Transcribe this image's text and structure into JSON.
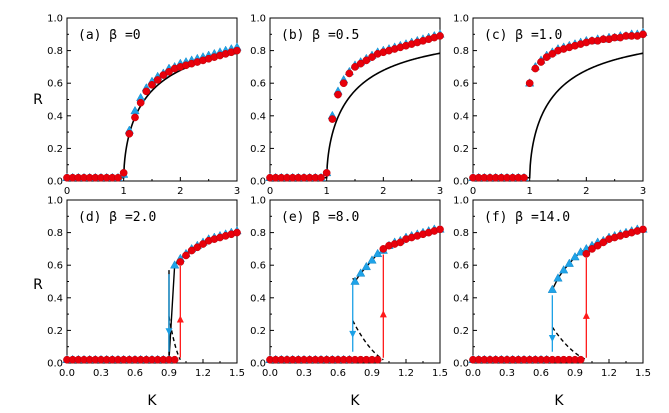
{
  "figure": {
    "ylabel_top": "R",
    "ylabel_bottom": "R",
    "xlabel": "K"
  },
  "colors": {
    "red": "#e8000b",
    "blue": "#1fa3e8",
    "theory": "#000000",
    "arrow_red": "#ff1a1a",
    "arrow_blue": "#1aa0e6"
  },
  "chart_data": [
    {
      "type": "scatter",
      "title": "(a) β =0",
      "xlim": [
        0,
        3
      ],
      "ylim": [
        0,
        1
      ],
      "xticks": [
        0,
        1,
        2,
        3
      ],
      "xticklabels": [
        "0",
        "1",
        "2",
        "3"
      ],
      "yticks": [
        0,
        0.2,
        0.4,
        0.6,
        0.8,
        1.0
      ],
      "yticklabels": [
        "0.0",
        "0.2",
        "0.4",
        "0.6",
        "0.8",
        "1.0"
      ],
      "red_points": {
        "x": [
          0.0,
          0.1,
          0.2,
          0.3,
          0.4,
          0.5,
          0.6,
          0.7,
          0.8,
          0.9,
          1.0,
          1.1,
          1.2,
          1.3,
          1.4,
          1.5,
          1.6,
          1.7,
          1.8,
          1.9,
          2.0,
          2.1,
          2.2,
          2.3,
          2.4,
          2.5,
          2.6,
          2.7,
          2.8,
          2.9,
          3.0
        ],
        "y": [
          0.02,
          0.02,
          0.02,
          0.02,
          0.02,
          0.02,
          0.02,
          0.02,
          0.02,
          0.02,
          0.05,
          0.29,
          0.39,
          0.48,
          0.55,
          0.59,
          0.62,
          0.65,
          0.67,
          0.69,
          0.7,
          0.71,
          0.72,
          0.73,
          0.74,
          0.75,
          0.76,
          0.77,
          0.78,
          0.79,
          0.8
        ]
      },
      "blue_points": {
        "x": [
          0.0,
          0.1,
          0.2,
          0.3,
          0.4,
          0.5,
          0.6,
          0.7,
          0.8,
          0.9,
          1.0,
          1.1,
          1.2,
          1.3,
          1.4,
          1.5,
          1.6,
          1.7,
          1.8,
          1.9,
          2.0,
          2.1,
          2.2,
          2.3,
          2.4,
          2.5,
          2.6,
          2.7,
          2.8,
          2.9,
          3.0
        ],
        "y": [
          0.02,
          0.02,
          0.02,
          0.02,
          0.02,
          0.02,
          0.02,
          0.02,
          0.02,
          0.02,
          0.04,
          0.31,
          0.43,
          0.51,
          0.57,
          0.61,
          0.64,
          0.66,
          0.69,
          0.7,
          0.72,
          0.73,
          0.74,
          0.75,
          0.76,
          0.77,
          0.78,
          0.79,
          0.8,
          0.81,
          0.82
        ]
      },
      "theory": {
        "Kc": 1.0
      }
    },
    {
      "type": "scatter",
      "title": "(b) β =0.5",
      "xlim": [
        0,
        3
      ],
      "ylim": [
        0,
        1
      ],
      "xticks": [
        0,
        1,
        2,
        3
      ],
      "xticklabels": [
        "0",
        "1",
        "2",
        "3"
      ],
      "yticks": [
        0,
        0.2,
        0.4,
        0.6,
        0.8,
        1.0
      ],
      "yticklabels": [
        "0.0",
        "0.2",
        "0.4",
        "0.6",
        "0.8",
        "1.0"
      ],
      "red_points": {
        "x": [
          0.0,
          0.1,
          0.2,
          0.3,
          0.4,
          0.5,
          0.6,
          0.7,
          0.8,
          0.9,
          1.0,
          1.1,
          1.2,
          1.3,
          1.4,
          1.5,
          1.6,
          1.7,
          1.8,
          1.9,
          2.0,
          2.1,
          2.2,
          2.3,
          2.4,
          2.5,
          2.6,
          2.7,
          2.8,
          2.9,
          3.0
        ],
        "y": [
          0.02,
          0.02,
          0.02,
          0.02,
          0.02,
          0.02,
          0.02,
          0.02,
          0.02,
          0.02,
          0.05,
          0.38,
          0.53,
          0.6,
          0.66,
          0.7,
          0.72,
          0.74,
          0.76,
          0.78,
          0.79,
          0.8,
          0.81,
          0.82,
          0.83,
          0.84,
          0.85,
          0.86,
          0.87,
          0.88,
          0.89
        ]
      },
      "blue_points": {
        "x": [
          0.0,
          0.1,
          0.2,
          0.3,
          0.4,
          0.5,
          0.6,
          0.7,
          0.8,
          0.9,
          1.0,
          1.1,
          1.2,
          1.3,
          1.4,
          1.5,
          1.6,
          1.7,
          1.8,
          1.9,
          2.0,
          2.1,
          2.2,
          2.3,
          2.4,
          2.5,
          2.6,
          2.7,
          2.8,
          2.9,
          3.0
        ],
        "y": [
          0.02,
          0.02,
          0.02,
          0.02,
          0.02,
          0.02,
          0.02,
          0.02,
          0.02,
          0.02,
          0.05,
          0.4,
          0.55,
          0.62,
          0.67,
          0.71,
          0.73,
          0.75,
          0.77,
          0.79,
          0.8,
          0.81,
          0.82,
          0.83,
          0.84,
          0.85,
          0.86,
          0.87,
          0.88,
          0.89,
          0.9
        ]
      },
      "theory": {
        "Kc": 1.0
      }
    },
    {
      "type": "scatter",
      "title": "(c) β =1.0",
      "xlim": [
        0,
        3
      ],
      "ylim": [
        0,
        1
      ],
      "xticks": [
        0,
        1,
        2,
        3
      ],
      "xticklabels": [
        "0",
        "1",
        "2",
        "3"
      ],
      "yticks": [
        0,
        0.2,
        0.4,
        0.6,
        0.8,
        1.0
      ],
      "yticklabels": [
        "0.0",
        "0.2",
        "0.4",
        "0.6",
        "0.8",
        "1.0"
      ],
      "red_points": {
        "x": [
          0.0,
          0.1,
          0.2,
          0.3,
          0.4,
          0.5,
          0.6,
          0.7,
          0.8,
          0.9,
          1.0,
          1.1,
          1.2,
          1.3,
          1.4,
          1.5,
          1.6,
          1.7,
          1.8,
          1.9,
          2.0,
          2.1,
          2.2,
          2.3,
          2.4,
          2.5,
          2.6,
          2.7,
          2.8,
          2.9,
          3.0
        ],
        "y": [
          0.02,
          0.02,
          0.02,
          0.02,
          0.02,
          0.02,
          0.02,
          0.02,
          0.02,
          0.02,
          0.6,
          0.69,
          0.73,
          0.76,
          0.78,
          0.8,
          0.81,
          0.82,
          0.83,
          0.84,
          0.85,
          0.86,
          0.86,
          0.87,
          0.87,
          0.88,
          0.88,
          0.89,
          0.89,
          0.89,
          0.9
        ]
      },
      "blue_points": {
        "x": [
          0.0,
          0.1,
          0.2,
          0.3,
          0.4,
          0.5,
          0.6,
          0.7,
          0.8,
          0.9,
          1.0,
          1.1,
          1.2,
          1.3,
          1.4,
          1.5,
          1.6,
          1.7,
          1.8,
          1.9,
          2.0,
          2.1,
          2.2,
          2.3,
          2.4,
          2.5,
          2.6,
          2.7,
          2.8,
          2.9,
          3.0
        ],
        "y": [
          0.02,
          0.02,
          0.02,
          0.02,
          0.02,
          0.02,
          0.02,
          0.02,
          0.02,
          0.02,
          0.6,
          0.7,
          0.74,
          0.77,
          0.79,
          0.81,
          0.82,
          0.83,
          0.84,
          0.85,
          0.86,
          0.86,
          0.87,
          0.87,
          0.88,
          0.88,
          0.89,
          0.89,
          0.9,
          0.9,
          0.91
        ]
      },
      "theory": {
        "Kc": 1.0
      }
    },
    {
      "type": "scatter",
      "title": "(d) β =2.0",
      "xlim": [
        0,
        1.5
      ],
      "ylim": [
        0,
        1
      ],
      "xticks": [
        0,
        0.3,
        0.6,
        0.9,
        1.2,
        1.5
      ],
      "xticklabels": [
        "0.0",
        "0.3",
        "0.6",
        "0.9",
        "1.2",
        "1.5"
      ],
      "yticks": [
        0,
        0.2,
        0.4,
        0.6,
        0.8,
        1.0
      ],
      "yticklabels": [
        "0.0",
        "0.2",
        "0.4",
        "0.6",
        "0.8",
        "1.0"
      ],
      "red_points": {
        "x": [
          0.0,
          0.05,
          0.1,
          0.15,
          0.2,
          0.25,
          0.3,
          0.35,
          0.4,
          0.45,
          0.5,
          0.55,
          0.6,
          0.65,
          0.7,
          0.75,
          0.8,
          0.85,
          0.9,
          0.95,
          1.0,
          1.05,
          1.1,
          1.15,
          1.2,
          1.25,
          1.3,
          1.35,
          1.4,
          1.45,
          1.5
        ],
        "y": [
          0.02,
          0.02,
          0.02,
          0.02,
          0.02,
          0.02,
          0.02,
          0.02,
          0.02,
          0.02,
          0.02,
          0.02,
          0.02,
          0.02,
          0.02,
          0.02,
          0.02,
          0.02,
          0.02,
          0.02,
          0.62,
          0.66,
          0.69,
          0.71,
          0.73,
          0.75,
          0.76,
          0.77,
          0.78,
          0.79,
          0.8
        ]
      },
      "blue_points": {
        "x": [
          0.0,
          0.05,
          0.1,
          0.15,
          0.2,
          0.25,
          0.3,
          0.35,
          0.4,
          0.45,
          0.5,
          0.55,
          0.6,
          0.65,
          0.7,
          0.75,
          0.8,
          0.85,
          0.9,
          0.95,
          1.0,
          1.05,
          1.1,
          1.15,
          1.2,
          1.25,
          1.3,
          1.35,
          1.4,
          1.45,
          1.5
        ],
        "y": [
          0.02,
          0.02,
          0.02,
          0.02,
          0.02,
          0.02,
          0.02,
          0.02,
          0.02,
          0.02,
          0.02,
          0.02,
          0.02,
          0.02,
          0.02,
          0.02,
          0.02,
          0.02,
          0.02,
          0.6,
          0.64,
          0.67,
          0.7,
          0.72,
          0.74,
          0.76,
          0.77,
          0.78,
          0.79,
          0.8,
          0.81
        ]
      },
      "theory": {
        "K_down": 0.9,
        "K_up": 1.0,
        "R_top_down": 0.57,
        "R_top_up": 0.62
      },
      "arrows": {
        "down_K": 0.9,
        "up_K": 1.0
      }
    },
    {
      "type": "scatter",
      "title": "(e) β =8.0",
      "xlim": [
        0,
        1.5
      ],
      "ylim": [
        0,
        1
      ],
      "xticks": [
        0,
        0.3,
        0.6,
        0.9,
        1.2,
        1.5
      ],
      "xticklabels": [
        "0.0",
        "0.3",
        "0.6",
        "0.9",
        "1.2",
        "1.5"
      ],
      "yticks": [
        0,
        0.2,
        0.4,
        0.6,
        0.8,
        1.0
      ],
      "yticklabels": [
        "0.0",
        "0.2",
        "0.4",
        "0.6",
        "0.8",
        "1.0"
      ],
      "red_points": {
        "x": [
          0.0,
          0.05,
          0.1,
          0.15,
          0.2,
          0.25,
          0.3,
          0.35,
          0.4,
          0.45,
          0.5,
          0.55,
          0.6,
          0.65,
          0.7,
          0.75,
          0.8,
          0.85,
          0.9,
          0.95,
          1.0,
          1.05,
          1.1,
          1.15,
          1.2,
          1.25,
          1.3,
          1.35,
          1.4,
          1.45,
          1.5
        ],
        "y": [
          0.02,
          0.02,
          0.02,
          0.02,
          0.02,
          0.02,
          0.02,
          0.02,
          0.02,
          0.02,
          0.02,
          0.02,
          0.02,
          0.02,
          0.02,
          0.02,
          0.02,
          0.02,
          0.02,
          0.02,
          0.7,
          0.72,
          0.73,
          0.74,
          0.76,
          0.77,
          0.78,
          0.79,
          0.8,
          0.81,
          0.82
        ]
      },
      "blue_points": {
        "x": [
          0.0,
          0.05,
          0.1,
          0.15,
          0.2,
          0.25,
          0.3,
          0.35,
          0.4,
          0.45,
          0.5,
          0.55,
          0.6,
          0.65,
          0.7,
          0.75,
          0.8,
          0.85,
          0.9,
          0.95,
          1.0,
          1.05,
          1.1,
          1.15,
          1.2,
          1.25,
          1.3,
          1.35,
          1.4,
          1.45,
          1.5
        ],
        "y": [
          0.02,
          0.02,
          0.02,
          0.02,
          0.02,
          0.02,
          0.02,
          0.02,
          0.02,
          0.02,
          0.02,
          0.02,
          0.02,
          0.02,
          0.02,
          0.5,
          0.55,
          0.59,
          0.63,
          0.67,
          0.69,
          0.72,
          0.74,
          0.75,
          0.77,
          0.78,
          0.79,
          0.8,
          0.81,
          0.82,
          0.82
        ]
      },
      "theory": {
        "K_down": 0.73,
        "K_up": 1.0,
        "R_top_down": 0.52,
        "R_top_up": 0.69
      },
      "arrows": {
        "down_K": 0.73,
        "up_K": 1.0
      }
    },
    {
      "type": "scatter",
      "title": "(f) β =14.0",
      "xlim": [
        0,
        1.5
      ],
      "ylim": [
        0,
        1
      ],
      "xticks": [
        0,
        0.3,
        0.6,
        0.9,
        1.2,
        1.5
      ],
      "xticklabels": [
        "0.0",
        "0.3",
        "0.6",
        "0.9",
        "1.2",
        "1.5"
      ],
      "yticks": [
        0,
        0.2,
        0.4,
        0.6,
        0.8,
        1.0
      ],
      "yticklabels": [
        "0.0",
        "0.2",
        "0.4",
        "0.6",
        "0.8",
        "1.0"
      ],
      "red_points": {
        "x": [
          0.0,
          0.05,
          0.1,
          0.15,
          0.2,
          0.25,
          0.3,
          0.35,
          0.4,
          0.45,
          0.5,
          0.55,
          0.6,
          0.65,
          0.7,
          0.75,
          0.8,
          0.85,
          0.9,
          0.95,
          1.0,
          1.05,
          1.1,
          1.15,
          1.2,
          1.25,
          1.3,
          1.35,
          1.4,
          1.45,
          1.5
        ],
        "y": [
          0.02,
          0.02,
          0.02,
          0.02,
          0.02,
          0.02,
          0.02,
          0.02,
          0.02,
          0.02,
          0.02,
          0.02,
          0.02,
          0.02,
          0.02,
          0.02,
          0.02,
          0.02,
          0.02,
          0.02,
          0.67,
          0.7,
          0.72,
          0.74,
          0.76,
          0.77,
          0.78,
          0.79,
          0.8,
          0.81,
          0.82
        ]
      },
      "blue_points": {
        "x": [
          0.0,
          0.05,
          0.1,
          0.15,
          0.2,
          0.25,
          0.3,
          0.35,
          0.4,
          0.45,
          0.5,
          0.55,
          0.6,
          0.65,
          0.7,
          0.75,
          0.8,
          0.85,
          0.9,
          0.95,
          1.0,
          1.05,
          1.1,
          1.15,
          1.2,
          1.25,
          1.3,
          1.35,
          1.4,
          1.45,
          1.5
        ],
        "y": [
          0.02,
          0.02,
          0.02,
          0.02,
          0.02,
          0.02,
          0.02,
          0.02,
          0.02,
          0.02,
          0.02,
          0.02,
          0.02,
          0.02,
          0.45,
          0.52,
          0.57,
          0.61,
          0.65,
          0.68,
          0.7,
          0.72,
          0.74,
          0.75,
          0.77,
          0.78,
          0.79,
          0.8,
          0.81,
          0.82,
          0.82
        ]
      },
      "theory": {
        "K_down": 0.7,
        "K_up": 1.0,
        "R_top_down": 0.44,
        "R_top_up": 0.67
      },
      "arrows": {
        "down_K": 0.7,
        "up_K": 1.0
      }
    }
  ]
}
